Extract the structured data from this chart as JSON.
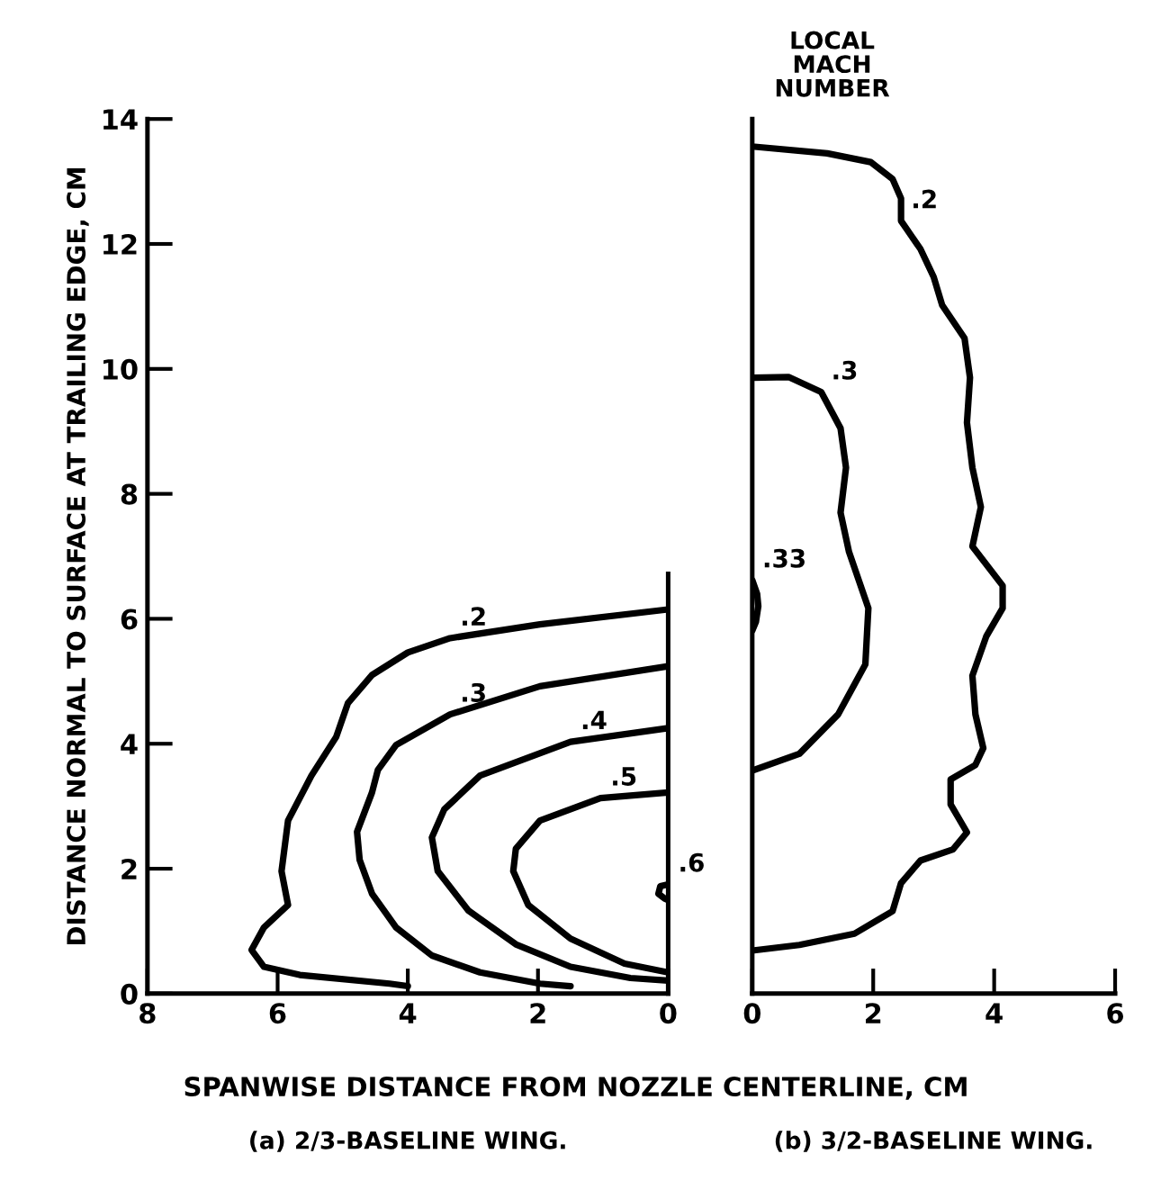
{
  "chart_data": [
    {
      "type": "line",
      "title": "(a) 2/3-BASELINE WING.",
      "xlabel": "SPANWISE DISTANCE FROM NOZZLE CENTERLINE, CM",
      "ylabel": "DISTANCE NORMAL TO SURFACE AT TRAILING EDGE, CM",
      "xlim": [
        8,
        0
      ],
      "xticks": [
        8,
        6,
        4,
        2,
        0
      ],
      "ylim": [
        0,
        14
      ],
      "yticks": [
        0,
        2,
        4,
        6,
        8,
        10,
        12,
        14
      ],
      "grid": false,
      "marker": "none",
      "line_style": "solid",
      "series": [
        {
          "name": ".2",
          "color": "#000000",
          "x": [
            0,
            1.97,
            3.35,
            4.0,
            4.55,
            4.92,
            5.1,
            5.48,
            5.84,
            5.94,
            5.84,
            6.21,
            6.4,
            6.21,
            5.66,
            4.28,
            4.0
          ],
          "values": [
            6.15,
            5.91,
            5.69,
            5.46,
            5.1,
            4.65,
            4.11,
            3.49,
            2.77,
            1.96,
            1.42,
            1.06,
            0.7,
            0.43,
            0.3,
            0.16,
            0.12
          ]
        },
        {
          "name": ".3",
          "color": "#000000",
          "x": [
            0,
            1.97,
            3.35,
            4.18,
            4.46,
            4.55,
            4.78,
            4.74,
            4.55,
            4.18,
            3.63,
            2.89,
            1.97,
            1.5
          ],
          "values": [
            5.24,
            4.92,
            4.47,
            3.98,
            3.58,
            3.22,
            2.59,
            2.14,
            1.6,
            1.06,
            0.61,
            0.34,
            0.16,
            0.12
          ]
        },
        {
          "name": ".4",
          "color": "#000000",
          "x": [
            0,
            1.5,
            2.89,
            3.44,
            3.63,
            3.54,
            3.07,
            2.34,
            1.5,
            0.58,
            0
          ],
          "values": [
            4.25,
            4.03,
            3.49,
            2.95,
            2.5,
            1.96,
            1.33,
            0.79,
            0.43,
            0.25,
            0.21
          ]
        },
        {
          "name": ".5",
          "color": "#000000",
          "x": [
            0,
            1.04,
            1.97,
            2.34,
            2.38,
            2.15,
            1.5,
            0.67,
            0
          ],
          "values": [
            3.22,
            3.13,
            2.77,
            2.32,
            1.96,
            1.42,
            0.88,
            0.48,
            0.34
          ]
        },
        {
          "name": ".6",
          "color": "#000000",
          "x": [
            0,
            0.12,
            0.15,
            0.05,
            0
          ],
          "values": [
            1.75,
            1.72,
            1.6,
            1.52,
            1.5
          ]
        }
      ]
    },
    {
      "type": "line",
      "title": "(b) 3/2-BASELINE WING.",
      "xlim": [
        0,
        6
      ],
      "xticks": [
        0,
        2,
        4,
        6
      ],
      "ylim": [
        0,
        14
      ],
      "tick_labels": "x",
      "grid": false,
      "marker": "none",
      "line_style": "solid",
      "series": [
        {
          "name": ".2",
          "color": "#000000",
          "x": [
            0,
            1.24,
            1.96,
            2.32,
            2.46,
            2.46,
            2.78,
            3.0,
            3.14,
            3.51,
            3.6,
            3.55,
            3.64,
            3.78,
            3.64,
            4.14,
            4.14,
            3.87,
            3.64,
            3.69,
            3.82,
            3.69,
            3.28,
            3.28,
            3.55,
            3.32,
            2.78,
            2.46,
            2.32,
            1.69,
            0.78,
            0
          ],
          "values": [
            13.56,
            13.45,
            13.31,
            13.04,
            12.73,
            12.37,
            11.92,
            11.47,
            11.02,
            10.49,
            9.86,
            9.14,
            8.42,
            7.79,
            7.16,
            6.53,
            6.17,
            5.72,
            5.09,
            4.47,
            3.93,
            3.66,
            3.43,
            3.03,
            2.58,
            2.31,
            2.13,
            1.77,
            1.32,
            0.96,
            0.78,
            0.69
          ]
        },
        {
          "name": ".3",
          "color": "#000000",
          "x": [
            0,
            0.6,
            1.14,
            1.46,
            1.55,
            1.46,
            1.6,
            1.92,
            1.87,
            1.42,
            0.78,
            0
          ],
          "values": [
            9.86,
            9.87,
            9.63,
            9.05,
            8.42,
            7.7,
            7.07,
            6.17,
            5.27,
            4.47,
            3.84,
            3.57
          ]
        },
        {
          "name": ".33",
          "color": "#000000",
          "x": [
            0,
            0.08,
            0.1,
            0.06,
            0
          ],
          "values": [
            6.62,
            6.4,
            6.2,
            5.95,
            5.81
          ]
        }
      ],
      "annotations": [
        "LOCAL\nMACH\nNUMBER"
      ]
    }
  ]
}
